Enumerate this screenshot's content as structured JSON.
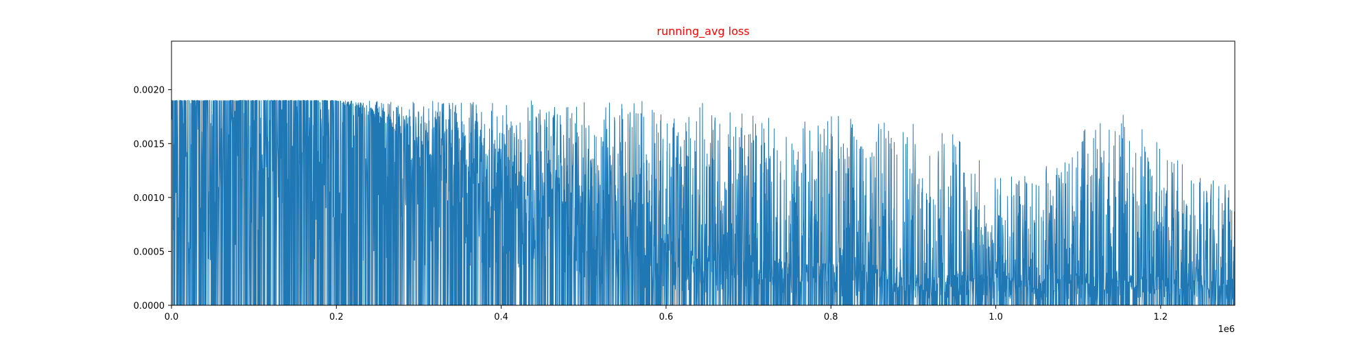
{
  "chart_data": {
    "type": "line",
    "title": "running_avg loss",
    "title_color": "#ff0000",
    "xlabel": "",
    "ylabel": "",
    "x_offset_text": "1e6",
    "xlim": [
      0,
      1290000
    ],
    "ylim": [
      0,
      0.00245
    ],
    "grid": false,
    "line_color": "#1f77b4",
    "x_ticks": [
      {
        "value": 0,
        "label": "0.0"
      },
      {
        "value": 200000,
        "label": "0.2"
      },
      {
        "value": 400000,
        "label": "0.4"
      },
      {
        "value": 600000,
        "label": "0.6"
      },
      {
        "value": 800000,
        "label": "0.8"
      },
      {
        "value": 1000000,
        "label": "1.0"
      },
      {
        "value": 1200000,
        "label": "1.2"
      }
    ],
    "y_ticks": [
      {
        "value": 0,
        "label": "0.0000"
      },
      {
        "value": 0.0005,
        "label": "0.0005"
      },
      {
        "value": 0.001,
        "label": "0.0010"
      },
      {
        "value": 0.0015,
        "label": "0.0015"
      },
      {
        "value": 0.002,
        "label": "0.0020"
      }
    ],
    "series": [
      {
        "envelope": {
          "x": [
            0,
            100000,
            200000,
            250000,
            300000,
            350000,
            400000,
            450000,
            500000,
            550000,
            600000,
            650000,
            700000,
            750000,
            800000,
            850000,
            900000,
            950000,
            1000000,
            1050000,
            1100000,
            1150000,
            1200000,
            1250000,
            1290000
          ],
          "y_max": [
            0.0019,
            0.0019,
            0.0019,
            0.0019,
            0.0019,
            0.0019,
            0.0019,
            0.0019,
            0.0019,
            0.0019,
            0.0019,
            0.0019,
            0.0018,
            0.0017,
            0.0018,
            0.0017,
            0.0017,
            0.0016,
            0.0012,
            0.0012,
            0.0016,
            0.0018,
            0.0016,
            0.0012,
            0.0011
          ],
          "y_min": [
            0.0,
            0.0,
            0.0,
            0.0,
            0.0,
            0.0,
            0.0,
            0.0,
            0.0,
            0.0,
            0.0,
            0.0,
            0.0,
            0.0,
            0.0,
            0.0,
            0.0,
            0.0,
            0.0,
            0.0,
            0.0,
            0.0,
            0.0,
            0.0,
            0.0
          ],
          "y_base": [
            0.0019,
            0.0019,
            0.0019,
            0.0017,
            0.0015,
            0.0013,
            0.0012,
            0.0011,
            0.001,
            0.0009,
            0.0006,
            0.0005,
            0.0005,
            0.0004,
            0.0004,
            0.0004,
            0.0003,
            0.0003,
            0.0003,
            0.00025,
            0.0003,
            0.0003,
            0.0003,
            0.00025,
            0.00025
          ]
        }
      }
    ]
  }
}
